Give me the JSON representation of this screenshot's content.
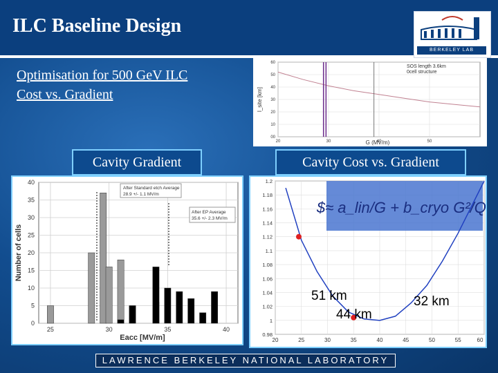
{
  "slide": {
    "title": "ILC Baseline Design",
    "subtitle_line1": "Optimisation for 500 GeV ILC",
    "subtitle_line2": "Cost vs. Gradient",
    "label_left": "Cavity Gradient",
    "label_right": "Cavity Cost vs. Gradient",
    "footer": "LAWRENCE BERKELEY NATIONAL LABORATORY",
    "logo_text": "BERKELEY LAB",
    "colors": {
      "background": "#0b3f7e",
      "highlight": "#7fd0ff"
    }
  },
  "chart_data": [
    {
      "type": "line",
      "xlabel": "G (MV/m)",
      "ylabel": "l_site [km]",
      "annotation_line1": "SOS length 3.6km",
      "annotation_line2": "0cell structure",
      "x_ticks": [
        "20",
        "30",
        "40",
        "50"
      ],
      "y_ticks": [
        "00",
        "10",
        "20",
        "30",
        "40",
        "50",
        "60"
      ],
      "xlim": [
        20,
        60
      ],
      "ylim": [
        0,
        60
      ],
      "series": [
        {
          "x": [
            20,
            25,
            30,
            35,
            40,
            45,
            50,
            55,
            60
          ],
          "values": [
            52,
            46,
            41,
            37,
            34,
            31,
            28,
            26,
            24
          ]
        }
      ],
      "vertical_lines": [
        29,
        29.5,
        39
      ]
    },
    {
      "type": "bar",
      "ylabel": "Number of cells",
      "xlabel": "Eacc [MV/m]",
      "x_ticks": [
        "25",
        "30",
        "35",
        "40"
      ],
      "y_ticks": [
        "0",
        "5",
        "10",
        "15",
        "20",
        "25",
        "30",
        "35",
        "40"
      ],
      "xlim": [
        24,
        41
      ],
      "ylim": [
        0,
        40
      ],
      "legend_top_line1": "After Standard etch Average",
      "legend_top_line2": "28.9 +/- 1.1 MV/m",
      "legend_mid_line1": "After EP Average",
      "legend_mid_line2": "35.6 +/- 2.3 MV/m",
      "series": [
        {
          "name": "After Standard etch Average",
          "color": "#9a9a9a",
          "x": [
            25,
            28.5,
            29.5,
            30,
            31,
            32,
            34
          ],
          "values": [
            5,
            20,
            37,
            16,
            18,
            5,
            6
          ]
        },
        {
          "name": "After EP Average",
          "color": "#000000",
          "x": [
            31,
            32,
            34,
            35,
            36,
            37,
            38,
            39
          ],
          "values": [
            1,
            5,
            16,
            10,
            9,
            7,
            3,
            9
          ]
        }
      ]
    },
    {
      "type": "line",
      "x_ticks": [
        "20",
        "25",
        "30",
        "35",
        "40",
        "45",
        "50",
        "55",
        "60"
      ],
      "y_ticks": [
        "0.98",
        "1",
        "1.02",
        "1.04",
        "1.06",
        "1.08",
        "1.1",
        "1.12",
        "1.14",
        "1.16",
        "1.18",
        "1.2"
      ],
      "xlim": [
        20,
        60
      ],
      "ylim": [
        0.98,
        1.2
      ],
      "series": [
        {
          "x": [
            22,
            25,
            28,
            31,
            34,
            37,
            40,
            43,
            46,
            49,
            52,
            55,
            58,
            60
          ],
          "values": [
            1.19,
            1.115,
            1.07,
            1.035,
            1.012,
            1.002,
            1.0,
            1.006,
            1.025,
            1.05,
            1.085,
            1.125,
            1.17,
            1.2
          ]
        }
      ],
      "points": [
        {
          "x": 24.5,
          "y": 1.12
        },
        {
          "x": 35,
          "y": 1.004
        }
      ],
      "label_51": "51 km",
      "label_44": "44 km",
      "label_32": "32 km",
      "formula": "$≈ a_lin/G + b_cryo G²/Q₀"
    }
  ]
}
